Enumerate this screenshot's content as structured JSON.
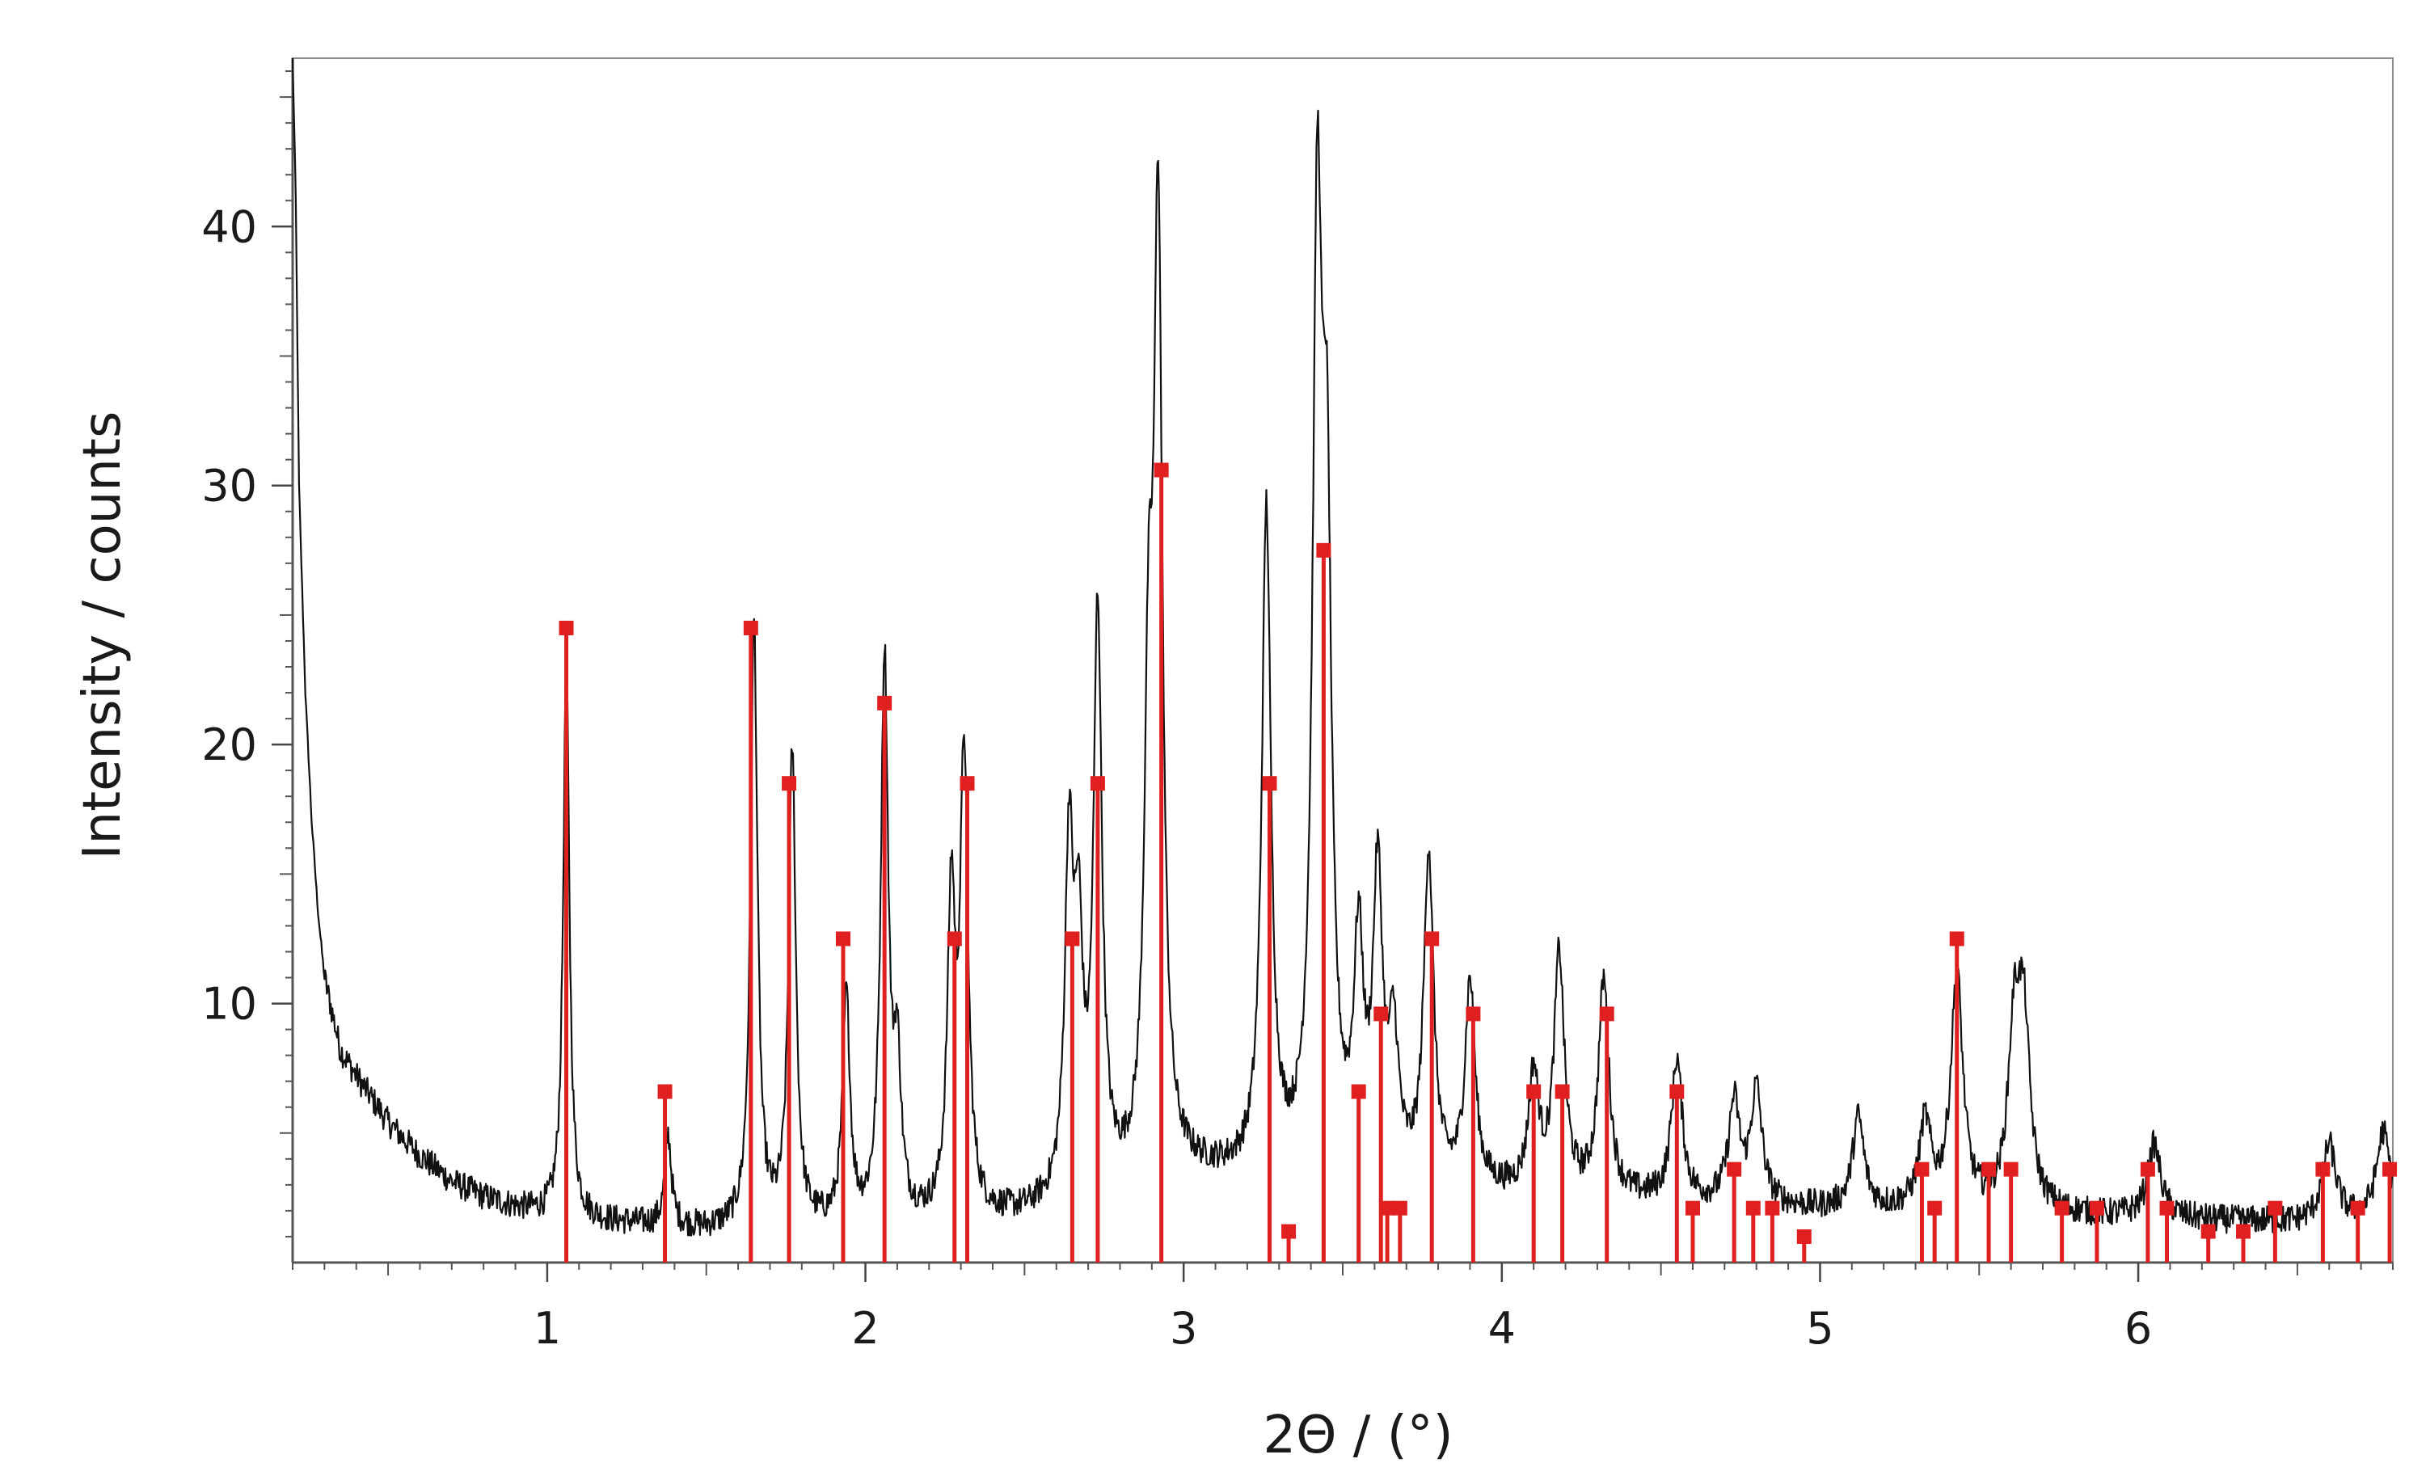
{
  "chart_data": {
    "type": "line",
    "title": "",
    "xlabel": "2Θ / (°)",
    "ylabel": "Intensity / counts",
    "xlim": [
      0.2,
      6.8
    ],
    "ylim": [
      0,
      46.5
    ],
    "x_ticks": [
      1,
      2,
      3,
      4,
      5,
      6
    ],
    "x_tick_labels": [
      "1",
      "2",
      "3",
      "4",
      "5",
      "6"
    ],
    "y_ticks": [
      10,
      20,
      30,
      40
    ],
    "y_tick_labels": [
      "10",
      "20",
      "30",
      "40"
    ],
    "grid": false,
    "legend": "none",
    "colors": {
      "pattern": "#111111",
      "reflections": "#e02020"
    },
    "series": [
      {
        "kind": "measured-pattern",
        "baseline": [
          [
            0.2,
            46.5
          ],
          [
            0.21,
            41
          ],
          [
            0.22,
            30
          ],
          [
            0.24,
            22
          ],
          [
            0.26,
            17
          ],
          [
            0.28,
            13.5
          ],
          [
            0.3,
            11
          ],
          [
            0.35,
            8.2
          ],
          [
            0.4,
            7.2
          ],
          [
            0.5,
            5.4
          ],
          [
            0.6,
            4.1
          ],
          [
            0.7,
            3.1
          ],
          [
            0.8,
            2.5
          ],
          [
            0.9,
            2.1
          ],
          [
            1.0,
            1.8
          ],
          [
            1.2,
            1.5
          ],
          [
            1.5,
            1.2
          ],
          [
            2.0,
            1.3
          ],
          [
            2.5,
            1.7
          ],
          [
            2.8,
            2.6
          ],
          [
            3.0,
            3.3
          ],
          [
            3.2,
            3.2
          ],
          [
            3.5,
            3.0
          ],
          [
            4.0,
            2.6
          ],
          [
            4.5,
            2.3
          ],
          [
            5.0,
            2.0
          ],
          [
            5.5,
            1.9
          ],
          [
            6.0,
            1.7
          ],
          [
            6.5,
            1.5
          ],
          [
            6.8,
            1.6
          ]
        ],
        "peaks": [
          [
            1.06,
            23.2
          ],
          [
            1.38,
            4.8
          ],
          [
            1.65,
            24.5
          ],
          [
            1.77,
            19.5
          ],
          [
            1.94,
            10.0
          ],
          [
            2.06,
            23.0
          ],
          [
            2.1,
            7.0
          ],
          [
            2.27,
            13.5
          ],
          [
            2.31,
            19.0
          ],
          [
            2.64,
            15.3
          ],
          [
            2.67,
            11.0
          ],
          [
            2.73,
            24.5
          ],
          [
            2.89,
            19.3
          ],
          [
            2.92,
            38.8
          ],
          [
            3.26,
            28.6
          ],
          [
            3.42,
            37.6
          ],
          [
            3.45,
            25.5
          ],
          [
            3.55,
            11.5
          ],
          [
            3.61,
            14.2
          ],
          [
            3.66,
            8.0
          ],
          [
            3.77,
            15.4
          ],
          [
            3.9,
            10.5
          ],
          [
            4.1,
            7.0
          ],
          [
            4.18,
            11.6
          ],
          [
            4.32,
            10.7
          ],
          [
            4.55,
            7.7
          ],
          [
            4.73,
            6.0
          ],
          [
            4.8,
            6.5
          ],
          [
            5.12,
            5.5
          ],
          [
            5.33,
            5.2
          ],
          [
            5.43,
            11.0
          ],
          [
            5.61,
            8.2
          ],
          [
            5.64,
            8.6
          ],
          [
            6.05,
            4.5
          ],
          [
            6.6,
            4.5
          ],
          [
            6.77,
            5.0
          ]
        ]
      },
      {
        "kind": "reference-reflections",
        "sticks": [
          [
            1.06,
            24.5
          ],
          [
            1.37,
            6.6
          ],
          [
            1.64,
            24.5
          ],
          [
            1.76,
            18.5
          ],
          [
            1.93,
            12.5
          ],
          [
            2.06,
            21.6
          ],
          [
            2.28,
            12.5
          ],
          [
            2.32,
            18.5
          ],
          [
            2.65,
            12.5
          ],
          [
            2.73,
            18.5
          ],
          [
            2.93,
            30.6
          ],
          [
            3.27,
            18.5
          ],
          [
            3.33,
            1.2
          ],
          [
            3.44,
            27.5
          ],
          [
            3.55,
            6.6
          ],
          [
            3.62,
            9.6
          ],
          [
            3.64,
            2.1
          ],
          [
            3.68,
            2.1
          ],
          [
            3.78,
            12.5
          ],
          [
            3.91,
            9.6
          ],
          [
            4.1,
            6.6
          ],
          [
            4.19,
            6.6
          ],
          [
            4.33,
            9.6
          ],
          [
            4.55,
            6.6
          ],
          [
            4.6,
            2.1
          ],
          [
            4.73,
            3.6
          ],
          [
            4.79,
            2.1
          ],
          [
            4.85,
            2.1
          ],
          [
            4.95,
            1.0
          ],
          [
            5.32,
            3.6
          ],
          [
            5.36,
            2.1
          ],
          [
            5.43,
            12.5
          ],
          [
            5.53,
            3.6
          ],
          [
            5.6,
            3.6
          ],
          [
            5.76,
            2.1
          ],
          [
            5.87,
            2.1
          ],
          [
            6.03,
            3.6
          ],
          [
            6.09,
            2.1
          ],
          [
            6.22,
            1.2
          ],
          [
            6.33,
            1.2
          ],
          [
            6.43,
            2.1
          ],
          [
            6.58,
            3.6
          ],
          [
            6.69,
            2.1
          ],
          [
            6.79,
            3.6
          ]
        ]
      }
    ]
  }
}
